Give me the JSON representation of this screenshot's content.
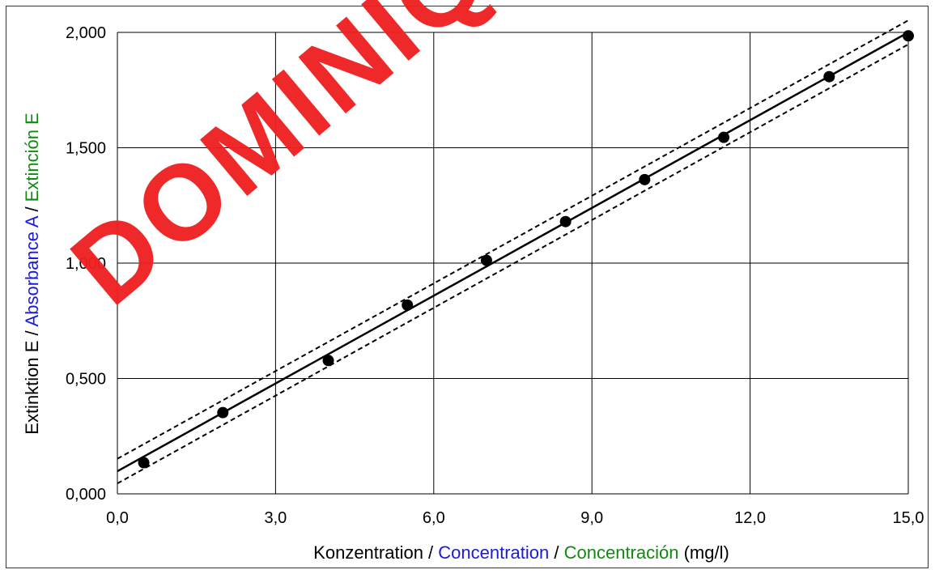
{
  "chart_data": {
    "type": "scatter",
    "title": "",
    "xlabel_parts": [
      {
        "text": "Konzentration",
        "color": "#000000"
      },
      {
        "text": " / ",
        "color": "#000000"
      },
      {
        "text": "Concentration",
        "color": "#1a1adb"
      },
      {
        "text": " / ",
        "color": "#000000"
      },
      {
        "text": "Concentración",
        "color": "#118a11"
      },
      {
        "text": " (mg/l)",
        "color": "#000000"
      }
    ],
    "ylabel_parts": [
      {
        "text": "Extinktion E",
        "color": "#000000"
      },
      {
        "text": " / ",
        "color": "#000000"
      },
      {
        "text": "Absorbance A",
        "color": "#1a1adb"
      },
      {
        "text": " / ",
        "color": "#000000"
      },
      {
        "text": "Extinción E",
        "color": "#118a11"
      }
    ],
    "xlim": [
      0,
      15
    ],
    "ylim": [
      0,
      2
    ],
    "x_ticks": [
      0,
      3,
      6,
      9,
      12,
      15
    ],
    "x_tick_labels": [
      "0,0",
      "3,0",
      "6,0",
      "9,0",
      "12,0",
      "15,0"
    ],
    "y_ticks": [
      0,
      0.5,
      1,
      1.5,
      2
    ],
    "y_tick_labels": [
      "0,000",
      "0,500",
      "1,000",
      "1,500",
      "2,000"
    ],
    "grid": true,
    "points": [
      {
        "x": 0.5,
        "y": 0.135
      },
      {
        "x": 2.0,
        "y": 0.352
      },
      {
        "x": 4.0,
        "y": 0.578
      },
      {
        "x": 5.5,
        "y": 0.818
      },
      {
        "x": 7.0,
        "y": 1.012
      },
      {
        "x": 8.5,
        "y": 1.18
      },
      {
        "x": 10.0,
        "y": 1.362
      },
      {
        "x": 11.5,
        "y": 1.545
      },
      {
        "x": 13.5,
        "y": 1.808
      },
      {
        "x": 15.0,
        "y": 1.985
      }
    ],
    "regression_line": {
      "x": [
        0,
        15
      ],
      "y": [
        0.098,
        2.0
      ]
    },
    "confidence_upper": {
      "x": [
        0,
        15
      ],
      "y": [
        0.152,
        2.052
      ]
    },
    "confidence_lower": {
      "x": [
        0,
        15
      ],
      "y": [
        0.045,
        1.948
      ]
    },
    "colors": {
      "points": "#000000",
      "line": "#000000",
      "grid": "#000000"
    }
  },
  "watermark": "DOMINIQUE"
}
